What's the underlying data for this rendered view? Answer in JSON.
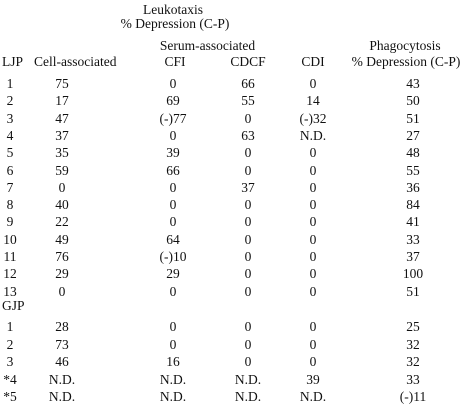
{
  "header": {
    "leukotaxis": "Leukotaxis",
    "leuko_depression": "% Depression (C-P)",
    "serum_associated": "Serum-associated",
    "phagocytosis": "Phagocytosis",
    "phago_depression": "% Depression (C-P)",
    "col_group": "LJP",
    "col_cell": "Cell-associated",
    "col_cfi": "CFI",
    "col_cdcf": "CDCF",
    "col_cdi": "CDI"
  },
  "ljp_rows": [
    [
      "1",
      "75",
      "0",
      "66",
      "0",
      "43"
    ],
    [
      "2",
      "17",
      "69",
      "55",
      "14",
      "50"
    ],
    [
      "3",
      "47",
      "(-)77",
      "0",
      "(-)32",
      "51"
    ],
    [
      "4",
      "37",
      "0",
      "63",
      "N.D.",
      "27"
    ],
    [
      "5",
      "35",
      "39",
      "0",
      "0",
      "48"
    ],
    [
      "6",
      "59",
      "66",
      "0",
      "0",
      "55"
    ],
    [
      "7",
      "0",
      "0",
      "37",
      "0",
      "36"
    ],
    [
      "8",
      "40",
      "0",
      "0",
      "0",
      "84"
    ],
    [
      "9",
      "22",
      "0",
      "0",
      "0",
      "41"
    ],
    [
      "10",
      "49",
      "64",
      "0",
      "0",
      "33"
    ],
    [
      "11",
      "76",
      "(-)10",
      "0",
      "0",
      "37"
    ],
    [
      "12",
      "29",
      "29",
      "0",
      "0",
      "100"
    ],
    [
      "13",
      "0",
      "0",
      "0",
      "0",
      "51"
    ]
  ],
  "gjp_label": "GJP",
  "gjp_rows": [
    [
      "1",
      "28",
      "0",
      "0",
      "0",
      "25"
    ],
    [
      "2",
      "73",
      "0",
      "0",
      "0",
      "32"
    ],
    [
      "3",
      "46",
      "16",
      "0",
      "0",
      "32"
    ],
    [
      "*4",
      "N.D.",
      "N.D.",
      "N.D.",
      "39",
      "33"
    ],
    [
      "*5",
      "N.D.",
      "N.D.",
      "N.D.",
      "N.D.",
      "(-)11"
    ]
  ]
}
